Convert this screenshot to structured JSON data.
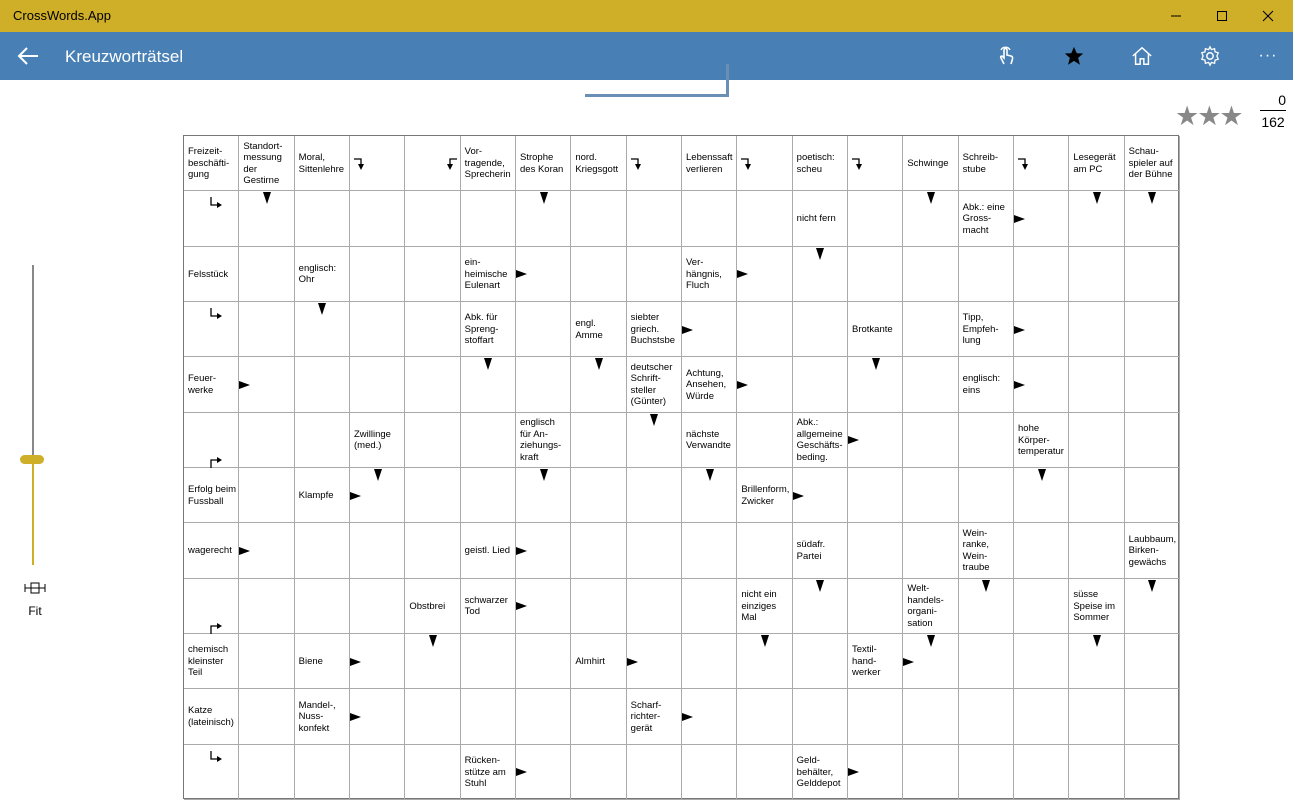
{
  "window": {
    "app_title": "CrossWords.App",
    "minimize_glyph": "—",
    "maximize_glyph": "☐",
    "close_glyph": "✕"
  },
  "appbar": {
    "page_title": "Kreuzworträtsel",
    "more_glyph": "···",
    "icons": [
      "back-arrow-icon",
      "touch-icon",
      "star-icon",
      "home-icon",
      "gear-icon",
      "more-icon"
    ]
  },
  "score": {
    "stars": "★★★",
    "solved": "0",
    "total": "162"
  },
  "zoom": {
    "fit_label": "Fit",
    "slider_level_percent": 35
  },
  "colors": {
    "titlebar": "#cfae28",
    "appbar": "#4880b6",
    "accent": "#cfae28"
  },
  "grid": {
    "rows": 12,
    "cols": 18,
    "clues": [
      {
        "r": 0,
        "c": 0,
        "text": "Freizeit-\nbeschäfti-\ngung"
      },
      {
        "r": 0,
        "c": 1,
        "text": "Standort-\nmessung\nder\nGestirne"
      },
      {
        "r": 0,
        "c": 2,
        "text": "Moral,\nSittenlehre"
      },
      {
        "r": 0,
        "c": 5,
        "text": "Vor-\ntragende,\nSprecherin"
      },
      {
        "r": 0,
        "c": 6,
        "text": "Strophe\ndes Koran"
      },
      {
        "r": 0,
        "c": 7,
        "text": "nord.\nKriegsgott"
      },
      {
        "r": 0,
        "c": 9,
        "text": "Lebenssaft\nverlieren"
      },
      {
        "r": 0,
        "c": 11,
        "text": "poetisch:\nscheu"
      },
      {
        "r": 0,
        "c": 13,
        "text": "Schwinge"
      },
      {
        "r": 0,
        "c": 14,
        "text": "Schreib-\nstube"
      },
      {
        "r": 0,
        "c": 16,
        "text": "Lesegerät\nam PC"
      },
      {
        "r": 0,
        "c": 17,
        "text": "Schau-\nspieler auf\nder Bühne"
      },
      {
        "r": 1,
        "c": 11,
        "text": "nicht fern"
      },
      {
        "r": 1,
        "c": 14,
        "text": "Abk.: eine\nGross-\nmacht"
      },
      {
        "r": 2,
        "c": 0,
        "text": "Felsstück"
      },
      {
        "r": 2,
        "c": 2,
        "text": "englisch:\nOhr"
      },
      {
        "r": 2,
        "c": 5,
        "text": "ein-\nheimische\nEulenart"
      },
      {
        "r": 2,
        "c": 9,
        "text": "Ver-\nhängnis,\nFluch"
      },
      {
        "r": 3,
        "c": 5,
        "text": "Abk. für\nSpreng-\nstoffart"
      },
      {
        "r": 3,
        "c": 7,
        "text": "engl.\nAmme"
      },
      {
        "r": 3,
        "c": 8,
        "text": "siebter\ngriech.\nBuchstsbe"
      },
      {
        "r": 3,
        "c": 12,
        "text": "Brotkante"
      },
      {
        "r": 3,
        "c": 14,
        "text": "Tipp,\nEmpfeh-\nlung"
      },
      {
        "r": 4,
        "c": 0,
        "text": "Feuer-\nwerke"
      },
      {
        "r": 4,
        "c": 8,
        "text": "deutscher\nSchrift-\nsteller\n(Günter)"
      },
      {
        "r": 4,
        "c": 9,
        "text": "Achtung,\nAnsehen,\nWürde"
      },
      {
        "r": 4,
        "c": 14,
        "text": "englisch:\neins"
      },
      {
        "r": 5,
        "c": 3,
        "text": "Zwillinge\n(med.)"
      },
      {
        "r": 5,
        "c": 6,
        "text": "englisch\nfür An-\nziehungs-\nkraft"
      },
      {
        "r": 5,
        "c": 9,
        "text": "nächste\nVerwandte"
      },
      {
        "r": 5,
        "c": 11,
        "text": "Abk.:\nallgemeine\nGeschäfts-\nbeding."
      },
      {
        "r": 5,
        "c": 15,
        "text": "hohe\nKörper-\ntemperatur"
      },
      {
        "r": 6,
        "c": 0,
        "text": "Erfolg beim\nFussball"
      },
      {
        "r": 6,
        "c": 2,
        "text": "Klampfe"
      },
      {
        "r": 6,
        "c": 10,
        "text": "Brillenform,\nZwicker"
      },
      {
        "r": 7,
        "c": 0,
        "text": "wagerecht"
      },
      {
        "r": 7,
        "c": 5,
        "text": "geistl. Lied"
      },
      {
        "r": 7,
        "c": 11,
        "text": "südafr.\nPartei"
      },
      {
        "r": 7,
        "c": 14,
        "text": "Wein-\nranke,\nWein-\ntraube"
      },
      {
        "r": 7,
        "c": 17,
        "text": "Laubbaum,\nBirken-\ngewächs"
      },
      {
        "r": 8,
        "c": 4,
        "text": "Obstbrei"
      },
      {
        "r": 8,
        "c": 5,
        "text": "schwarzer\nTod"
      },
      {
        "r": 8,
        "c": 10,
        "text": "nicht ein\neinziges\nMal"
      },
      {
        "r": 8,
        "c": 13,
        "text": "Welt-\nhandels-\norgani-\nsation"
      },
      {
        "r": 8,
        "c": 16,
        "text": "süsse\nSpeise im\nSommer"
      },
      {
        "r": 9,
        "c": 0,
        "text": "chemisch\nkleinster\nTeil"
      },
      {
        "r": 9,
        "c": 2,
        "text": "Biene"
      },
      {
        "r": 9,
        "c": 7,
        "text": "Almhirt"
      },
      {
        "r": 9,
        "c": 12,
        "text": "Textil-\nhand-\nwerker"
      },
      {
        "r": 10,
        "c": 0,
        "text": "Katze\n(lateinisch)"
      },
      {
        "r": 10,
        "c": 2,
        "text": "Mandel-,\nNuss-\nkonfekt"
      },
      {
        "r": 10,
        "c": 8,
        "text": "Scharf-\nrichter-\ngerät"
      },
      {
        "r": 11,
        "c": 5,
        "text": "Rücken-\nstütze am\nStuhl"
      },
      {
        "r": 11,
        "c": 11,
        "text": "Geld-\nbehälter,\nGelddepot"
      }
    ],
    "arrows": [
      {
        "r": 0,
        "c": 3,
        "type": "right-down"
      },
      {
        "r": 0,
        "c": 4,
        "type": "left-down"
      },
      {
        "r": 0,
        "c": 8,
        "type": "right-down"
      },
      {
        "r": 0,
        "c": 10,
        "type": "right-down"
      },
      {
        "r": 0,
        "c": 12,
        "type": "right-down"
      },
      {
        "r": 0,
        "c": 15,
        "type": "right-down"
      },
      {
        "r": 1,
        "c": 0,
        "type": "down-right"
      },
      {
        "r": 1,
        "c": 1,
        "type": "down"
      },
      {
        "r": 1,
        "c": 6,
        "type": "down"
      },
      {
        "r": 1,
        "c": 13,
        "type": "down"
      },
      {
        "r": 1,
        "c": 15,
        "type": "right"
      },
      {
        "r": 1,
        "c": 16,
        "type": "down"
      },
      {
        "r": 1,
        "c": 17,
        "type": "down"
      },
      {
        "r": 2,
        "c": 6,
        "type": "right"
      },
      {
        "r": 2,
        "c": 10,
        "type": "right"
      },
      {
        "r": 2,
        "c": 11,
        "type": "down"
      },
      {
        "r": 3,
        "c": 0,
        "type": "down-right"
      },
      {
        "r": 3,
        "c": 2,
        "type": "down"
      },
      {
        "r": 3,
        "c": 9,
        "type": "right"
      },
      {
        "r": 3,
        "c": 15,
        "type": "right"
      },
      {
        "r": 4,
        "c": 1,
        "type": "right"
      },
      {
        "r": 4,
        "c": 5,
        "type": "down"
      },
      {
        "r": 4,
        "c": 7,
        "type": "down"
      },
      {
        "r": 4,
        "c": 10,
        "type": "right"
      },
      {
        "r": 4,
        "c": 12,
        "type": "down"
      },
      {
        "r": 4,
        "c": 15,
        "type": "right"
      },
      {
        "r": 5,
        "c": 0,
        "type": "up-right"
      },
      {
        "r": 5,
        "c": 8,
        "type": "down"
      },
      {
        "r": 5,
        "c": 12,
        "type": "right"
      },
      {
        "r": 6,
        "c": 3,
        "type": "right"
      },
      {
        "r": 6,
        "c": 3,
        "type": "down"
      },
      {
        "r": 6,
        "c": 6,
        "type": "down"
      },
      {
        "r": 6,
        "c": 9,
        "type": "down"
      },
      {
        "r": 6,
        "c": 11,
        "type": "right"
      },
      {
        "r": 6,
        "c": 15,
        "type": "down"
      },
      {
        "r": 7,
        "c": 1,
        "type": "right"
      },
      {
        "r": 7,
        "c": 6,
        "type": "right"
      },
      {
        "r": 8,
        "c": 0,
        "type": "up-right"
      },
      {
        "r": 8,
        "c": 6,
        "type": "right"
      },
      {
        "r": 8,
        "c": 11,
        "type": "down"
      },
      {
        "r": 8,
        "c": 14,
        "type": "down"
      },
      {
        "r": 8,
        "c": 17,
        "type": "down"
      },
      {
        "r": 9,
        "c": 3,
        "type": "right"
      },
      {
        "r": 9,
        "c": 4,
        "type": "down"
      },
      {
        "r": 9,
        "c": 8,
        "type": "right"
      },
      {
        "r": 9,
        "c": 10,
        "type": "down"
      },
      {
        "r": 9,
        "c": 13,
        "type": "right"
      },
      {
        "r": 9,
        "c": 13,
        "type": "down"
      },
      {
        "r": 9,
        "c": 16,
        "type": "down"
      },
      {
        "r": 10,
        "c": 3,
        "type": "right"
      },
      {
        "r": 10,
        "c": 9,
        "type": "right"
      },
      {
        "r": 11,
        "c": 0,
        "type": "down-right"
      },
      {
        "r": 11,
        "c": 6,
        "type": "right"
      },
      {
        "r": 11,
        "c": 12,
        "type": "right"
      }
    ]
  }
}
